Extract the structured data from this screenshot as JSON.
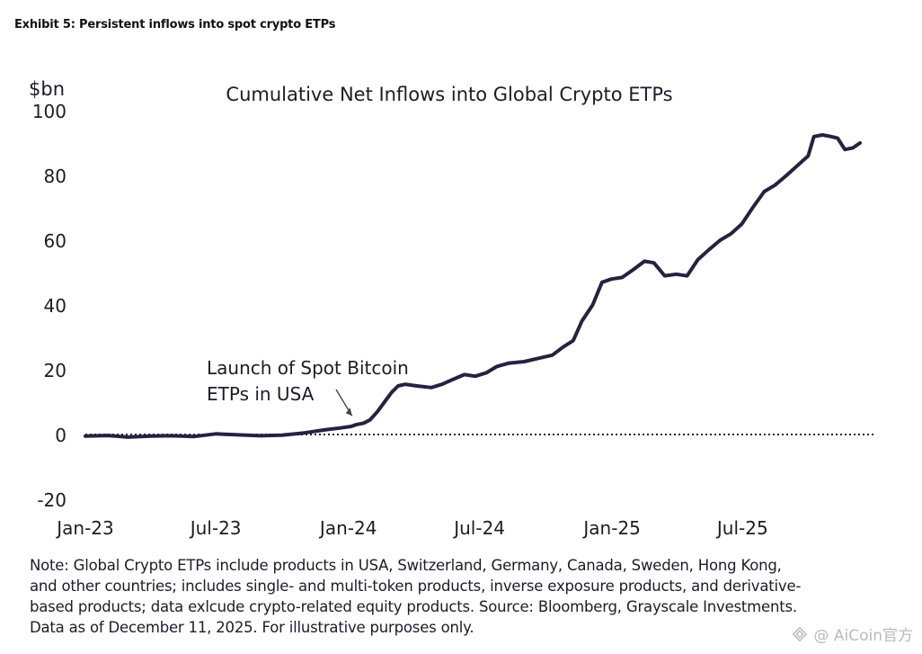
{
  "exhibit_title": "Exhibit 5: Persistent inflows into spot crypto ETPs",
  "note_lines": [
    "Note: Global Crypto ETPs include products in USA, Switzerland, Germany, Canada, Sweden, Hong Kong,",
    "and other countries; includes single- and multi-token products, inverse exposure products, and derivative-",
    "based products; data exlcude crypto-related equity products. Source: Bloomberg, Grayscale Investments.",
    "Data as of December 11, 2025. For illustrative purposes only."
  ],
  "watermark": "@ AiCoin官方",
  "colors": {
    "line": "#24233f",
    "zero_line": "#24233f",
    "text": "#1c1c2a"
  },
  "chart_data": {
    "type": "line",
    "title": "Cumulative Net Inflows into Global Crypto ETPs",
    "ylabel": "$bn",
    "xlabel": "",
    "ylim": [
      -20,
      100
    ],
    "yticks": [
      -20,
      0,
      20,
      40,
      60,
      80,
      100
    ],
    "x_range": [
      "2023-01-01",
      "2025-12-11"
    ],
    "xticks": [
      {
        "date": "2023-01-01",
        "label": "Jan-23"
      },
      {
        "date": "2023-07-01",
        "label": "Jul-23"
      },
      {
        "date": "2024-01-01",
        "label": "Jan-24"
      },
      {
        "date": "2024-07-01",
        "label": "Jul-24"
      },
      {
        "date": "2025-01-01",
        "label": "Jan-25"
      },
      {
        "date": "2025-07-01",
        "label": "Jul-25"
      }
    ],
    "grid": false,
    "legend": "none",
    "zero_line": "dotted",
    "annotation": {
      "lines": [
        "Launch of Spot Bitcoin",
        "ETPs in USA"
      ],
      "points_to": {
        "date": "2024-01-11",
        "value": 3
      }
    },
    "series": [
      {
        "points": [
          [
            "2023-01-01",
            -0.5
          ],
          [
            "2023-02-01",
            -0.3
          ],
          [
            "2023-03-01",
            -0.8
          ],
          [
            "2023-04-01",
            -0.5
          ],
          [
            "2023-05-01",
            -0.4
          ],
          [
            "2023-06-01",
            -0.6
          ],
          [
            "2023-07-01",
            0.2
          ],
          [
            "2023-08-01",
            -0.1
          ],
          [
            "2023-09-01",
            -0.4
          ],
          [
            "2023-10-01",
            -0.2
          ],
          [
            "2023-11-01",
            0.5
          ],
          [
            "2023-12-01",
            1.5
          ],
          [
            "2023-12-20",
            2.0
          ],
          [
            "2024-01-05",
            2.5
          ],
          [
            "2024-01-11",
            3.0
          ],
          [
            "2024-01-22",
            3.5
          ],
          [
            "2024-01-31",
            4.5
          ],
          [
            "2024-02-10",
            7.0
          ],
          [
            "2024-02-20",
            10.0
          ],
          [
            "2024-03-01",
            13.0
          ],
          [
            "2024-03-10",
            15.0
          ],
          [
            "2024-03-20",
            15.5
          ],
          [
            "2024-04-05",
            15.0
          ],
          [
            "2024-04-25",
            14.5
          ],
          [
            "2024-05-10",
            15.5
          ],
          [
            "2024-05-25",
            17.0
          ],
          [
            "2024-06-10",
            18.5
          ],
          [
            "2024-06-25",
            18.0
          ],
          [
            "2024-07-10",
            19.0
          ],
          [
            "2024-07-25",
            21.0
          ],
          [
            "2024-08-10",
            22.0
          ],
          [
            "2024-09-01",
            22.5
          ],
          [
            "2024-09-20",
            23.5
          ],
          [
            "2024-10-10",
            24.5
          ],
          [
            "2024-10-25",
            27.0
          ],
          [
            "2024-11-08",
            29.0
          ],
          [
            "2024-11-20",
            35.0
          ],
          [
            "2024-12-05",
            40.0
          ],
          [
            "2024-12-18",
            47.0
          ],
          [
            "2024-12-31",
            48.0
          ],
          [
            "2025-01-15",
            48.5
          ],
          [
            "2025-01-31",
            51.0
          ],
          [
            "2025-02-15",
            53.5
          ],
          [
            "2025-02-28",
            53.0
          ],
          [
            "2025-03-15",
            49.0
          ],
          [
            "2025-03-31",
            49.5
          ],
          [
            "2025-04-15",
            49.0
          ],
          [
            "2025-04-30",
            54.0
          ],
          [
            "2025-05-15",
            57.0
          ],
          [
            "2025-05-31",
            60.0
          ],
          [
            "2025-06-15",
            62.0
          ],
          [
            "2025-06-30",
            65.0
          ],
          [
            "2025-07-15",
            70.0
          ],
          [
            "2025-07-31",
            75.0
          ],
          [
            "2025-08-15",
            77.0
          ],
          [
            "2025-08-31",
            80.0
          ],
          [
            "2025-09-15",
            83.0
          ],
          [
            "2025-09-30",
            86.0
          ],
          [
            "2025-10-08",
            92.0
          ],
          [
            "2025-10-20",
            92.5
          ],
          [
            "2025-11-01",
            92.0
          ],
          [
            "2025-11-10",
            91.5
          ],
          [
            "2025-11-20",
            88.0
          ],
          [
            "2025-12-01",
            88.5
          ],
          [
            "2025-12-11",
            90.0
          ]
        ]
      }
    ]
  }
}
